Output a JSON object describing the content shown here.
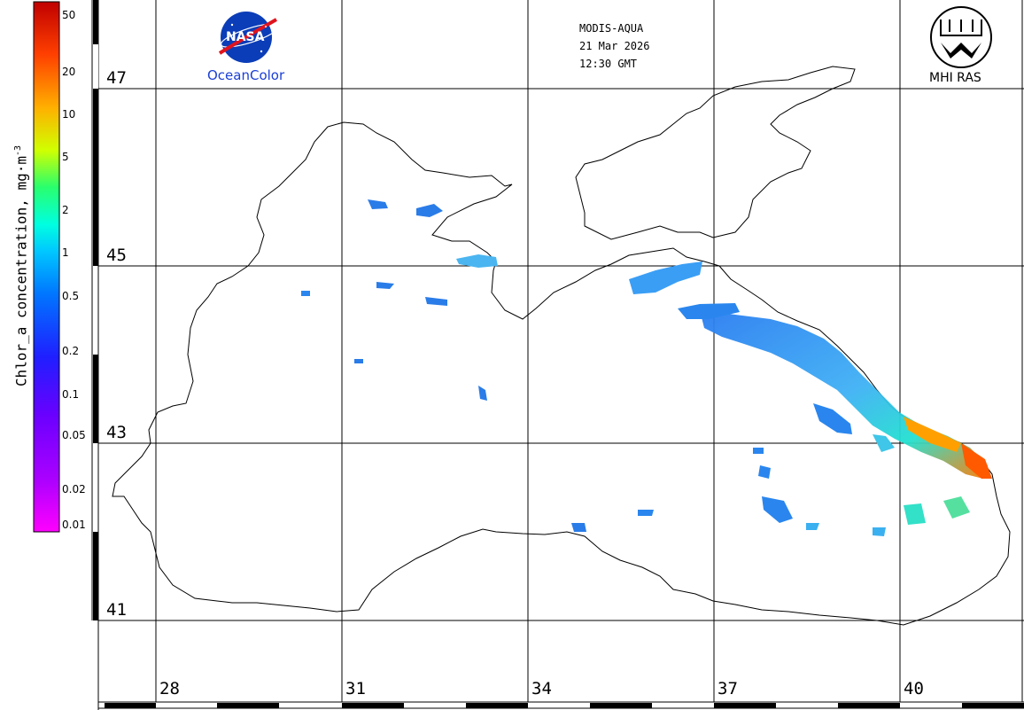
{
  "sensor": {
    "satellite": "MODIS-AQUA",
    "date": "21 Mar 2026",
    "time": "12:30 GMT"
  },
  "logos": {
    "nasa_text": "NASA",
    "oceancolor_text": "OceanColor",
    "mhi_text": "MHI RAS"
  },
  "colorbar": {
    "title": "Chlor_a concentration, mg·m",
    "title_exponent": "-3",
    "ticks": [
      "50",
      "20",
      "10",
      "5",
      "2",
      "1",
      "0.5",
      "0.2",
      "0.1",
      "0.05",
      "0.02",
      "0.01"
    ],
    "colors": [
      "#ff00ff",
      "#aa00ff",
      "#6a00ff",
      "#1f1fff",
      "#0077ff",
      "#00c8ff",
      "#00ffe0",
      "#29ff6e",
      "#d0ff00",
      "#ffb000",
      "#ff4000",
      "#c00000"
    ]
  },
  "grid": {
    "latitudes": [
      "47",
      "45",
      "43",
      "41"
    ],
    "longitudes": [
      "28",
      "31",
      "34",
      "37",
      "40"
    ]
  }
}
